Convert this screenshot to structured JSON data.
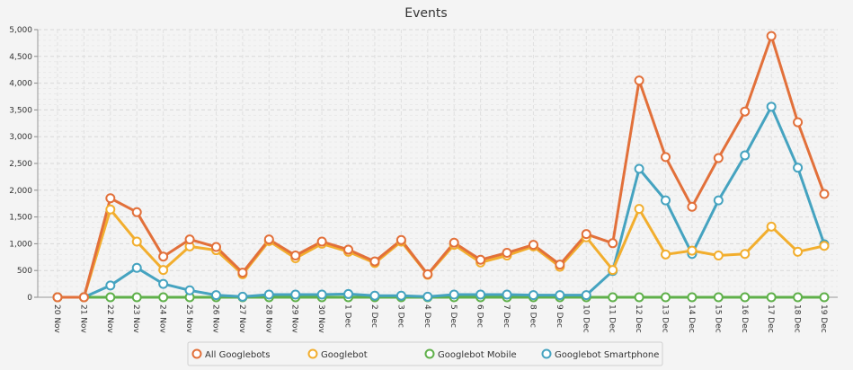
{
  "chart_data": {
    "type": "line",
    "title": "Events",
    "xlabel": "",
    "ylabel": "",
    "categories": [
      "20 Nov",
      "21 Nov",
      "22 Nov",
      "23 Nov",
      "24 Nov",
      "25 Nov",
      "26 Nov",
      "27 Nov",
      "28 Nov",
      "29 Nov",
      "30 Nov",
      "1 Dec",
      "2 Dec",
      "3 Dec",
      "4 Dec",
      "5 Dec",
      "6 Dec",
      "7 Dec",
      "8 Dec",
      "9 Dec",
      "10 Dec",
      "11 Dec",
      "12 Dec",
      "13 Dec",
      "14 Dec",
      "15 Dec",
      "16 Dec",
      "17 Dec",
      "18 Dec",
      "19 Dec"
    ],
    "ylim": [
      0,
      5000
    ],
    "yticks": [
      0,
      500,
      1000,
      1500,
      2000,
      2500,
      3000,
      3500,
      4000,
      4500,
      5000
    ],
    "ytick_labels": [
      "0",
      "500",
      "1,000",
      "1,500",
      "2,000",
      "2,500",
      "3,000",
      "3,500",
      "4,000",
      "4,500",
      "5,000"
    ],
    "grid": true,
    "legend_position": "bottom",
    "series": [
      {
        "name": "All Googlebots",
        "color": "#e2703a",
        "values": [
          0,
          0,
          1850,
          1590,
          760,
          1080,
          940,
          460,
          1080,
          780,
          1040,
          890,
          670,
          1070,
          430,
          1020,
          700,
          830,
          980,
          610,
          1180,
          1010,
          4050,
          2620,
          1690,
          2600,
          3470,
          4880,
          3270,
          1930
        ]
      },
      {
        "name": "Googlebot",
        "color": "#f2ae2e",
        "values": [
          0,
          0,
          1640,
          1040,
          510,
          950,
          880,
          430,
          1050,
          730,
          1000,
          850,
          640,
          1040,
          420,
          980,
          650,
          780,
          950,
          570,
          1120,
          510,
          1650,
          800,
          870,
          780,
          810,
          1320,
          850,
          960
        ]
      },
      {
        "name": "Googlebot Mobile",
        "color": "#5fb04a",
        "values": [
          0,
          0,
          0,
          0,
          0,
          0,
          0,
          0,
          0,
          0,
          0,
          0,
          0,
          0,
          0,
          0,
          0,
          0,
          0,
          0,
          0,
          0,
          0,
          0,
          0,
          0,
          0,
          0,
          0,
          0
        ]
      },
      {
        "name": "Googlebot Smartphone",
        "color": "#45a3c0",
        "values": [
          0,
          0,
          220,
          550,
          250,
          130,
          40,
          10,
          50,
          50,
          50,
          60,
          30,
          30,
          10,
          50,
          50,
          50,
          40,
          40,
          40,
          490,
          2400,
          1810,
          810,
          1810,
          2650,
          3560,
          2420,
          990
        ]
      }
    ]
  }
}
